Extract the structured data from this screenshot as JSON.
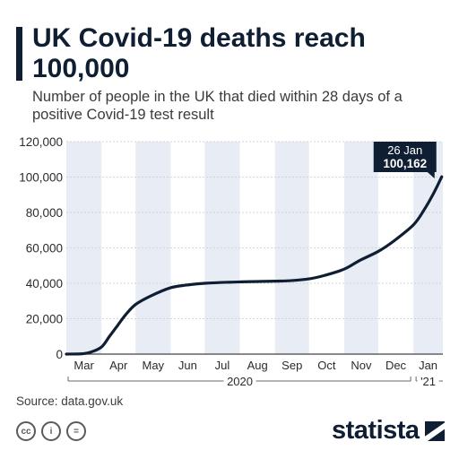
{
  "header": {
    "title": "UK Covid-19 deaths reach 100,000",
    "subtitle": "Number of people in the UK that died within 28 days of a positive Covid-19 test result"
  },
  "footer": {
    "source": "Source: data.gov.uk",
    "brand": "statista"
  },
  "colors": {
    "line": "#0f1e33",
    "band": "#e8ecf4",
    "grid": "#c9c9c9",
    "annotation_bg": "#0f1e33"
  },
  "chart_data": {
    "type": "line",
    "title": "UK Covid-19 deaths reach 100,000",
    "subtitle": "Number of people in the UK that died within 28 days of a positive Covid-19 test result",
    "xlabel": "",
    "ylabel": "",
    "ylim": [
      0,
      120000
    ],
    "yticks": [
      0,
      20000,
      40000,
      60000,
      80000,
      100000,
      120000
    ],
    "ytick_labels": [
      "0",
      "20,000",
      "40,000",
      "60,000",
      "80,000",
      "100,000",
      "120,000"
    ],
    "months": [
      "Mar",
      "Apr",
      "May",
      "Jun",
      "Jul",
      "Aug",
      "Sep",
      "Oct",
      "Nov",
      "Dec",
      "Jan"
    ],
    "year_labels": [
      "2020",
      "'21"
    ],
    "grid": true,
    "series": [
      {
        "values": [
          [
            "2020-03-01",
            0
          ],
          [
            "2020-03-15",
            200
          ],
          [
            "2020-03-22",
            1000
          ],
          [
            "2020-04-01",
            4000
          ],
          [
            "2020-04-08",
            10000
          ],
          [
            "2020-04-15",
            16000
          ],
          [
            "2020-04-22",
            22000
          ],
          [
            "2020-05-01",
            28000
          ],
          [
            "2020-05-15",
            33000
          ],
          [
            "2020-06-01",
            37500
          ],
          [
            "2020-06-15",
            39000
          ],
          [
            "2020-07-01",
            40000
          ],
          [
            "2020-08-01",
            40800
          ],
          [
            "2020-09-01",
            41200
          ],
          [
            "2020-09-15",
            41500
          ],
          [
            "2020-10-01",
            42500
          ],
          [
            "2020-10-15",
            44500
          ],
          [
            "2020-11-01",
            48000
          ],
          [
            "2020-11-15",
            53000
          ],
          [
            "2020-12-01",
            58000
          ],
          [
            "2020-12-15",
            64000
          ],
          [
            "2021-01-01",
            73000
          ],
          [
            "2021-01-10",
            81000
          ],
          [
            "2021-01-19",
            91000
          ],
          [
            "2021-01-26",
            100162
          ]
        ]
      }
    ],
    "annotation": {
      "date": "26 Jan",
      "value": "100,162"
    }
  }
}
